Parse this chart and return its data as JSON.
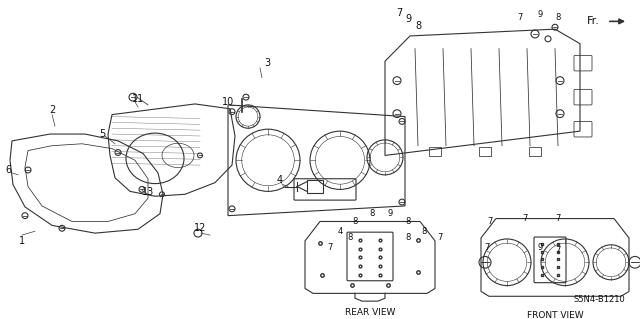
{
  "bg_color": "#ffffff",
  "line_color": "#333333",
  "text_color": "#111111",
  "diagram_code": "S5N4-B1210",
  "fr_label": "Fr.",
  "rear_view_label": "REAR VIEW",
  "front_view_label": "FRONT VIEW",
  "lw": 0.8,
  "fs": 7,
  "part_labels": [
    [
      22,
      248,
      "1"
    ],
    [
      52,
      113,
      "2"
    ],
    [
      267,
      65,
      "3"
    ],
    [
      280,
      185,
      "4"
    ],
    [
      102,
      138,
      "5"
    ],
    [
      8,
      175,
      "6"
    ],
    [
      399,
      13,
      "7"
    ],
    [
      418,
      27,
      "8"
    ],
    [
      408,
      20,
      "9"
    ],
    [
      228,
      105,
      "10"
    ],
    [
      138,
      102,
      "11"
    ],
    [
      200,
      235,
      "12"
    ],
    [
      148,
      198,
      "13"
    ]
  ],
  "rear_labels": [
    [
      327,
      223,
      "8"
    ],
    [
      347,
      215,
      "8"
    ],
    [
      368,
      222,
      "9"
    ],
    [
      388,
      215,
      "8"
    ],
    [
      408,
      223,
      "8"
    ],
    [
      348,
      230,
      "7"
    ],
    [
      430,
      200,
      "7"
    ]
  ],
  "front_labels": [
    [
      496,
      213,
      "7"
    ],
    [
      530,
      213,
      "7"
    ],
    [
      560,
      220,
      "7"
    ],
    [
      496,
      240,
      "7"
    ],
    [
      545,
      248,
      "9"
    ],
    [
      530,
      255,
      "7"
    ]
  ],
  "top_labels": [
    [
      399,
      13,
      "7"
    ],
    [
      418,
      20,
      "9"
    ],
    [
      435,
      13,
      "8"
    ]
  ]
}
